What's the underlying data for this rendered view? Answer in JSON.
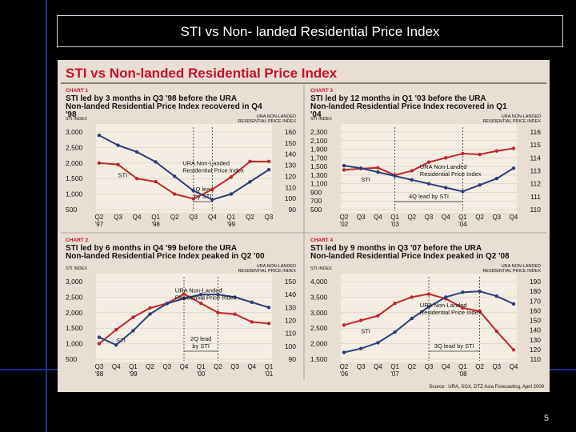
{
  "slide": {
    "title": "STI  vs Non- landed Residential Price Index",
    "page_number": "5"
  },
  "clipping": {
    "headline": "STI vs Non-landed Residential Price Index",
    "source": "Source : URA, SGX, DTZ Asia Forecasting, April 2009"
  },
  "colors": {
    "sti": "#c0272d",
    "ura": "#2c3e7a",
    "headline": "#c8102e",
    "paper": "#e8ded3",
    "slide_bg": "#000000",
    "frame_line": "#1f2f8a"
  },
  "chart_data": [
    {
      "type": "line",
      "tag": "CHART 1",
      "title": "STI led by 3 months in Q3 '98 before the URA Non-landed Residential Price Index recovered in Q4 '98",
      "y_left_label": "STI INDEX",
      "y_right_label": "URA NON-LANDED RESIDENTIAL PRICE INDEX",
      "y_left_ticks": [
        "3,000",
        "2,500",
        "2,000",
        "1,500",
        "1,000",
        "500"
      ],
      "y_right_ticks": [
        "160",
        "150",
        "140",
        "130",
        "120",
        "110",
        "100",
        "90"
      ],
      "ylim_left": [
        500,
        3000
      ],
      "ylim_right": [
        90,
        160
      ],
      "x_labels": [
        [
          "Q2",
          "'97"
        ],
        [
          "Q3",
          ""
        ],
        [
          "Q4",
          ""
        ],
        [
          "Q1",
          "'98"
        ],
        [
          "Q2",
          ""
        ],
        [
          "Q3",
          ""
        ],
        [
          "Q4",
          ""
        ],
        [
          "Q1",
          "'99"
        ],
        [
          "Q2",
          ""
        ],
        [
          "Q3",
          ""
        ]
      ],
      "series": [
        {
          "name": "STI",
          "axis": "left",
          "values": [
            2000,
            1950,
            1500,
            1400,
            1000,
            850,
            1150,
            1550,
            2050,
            2050
          ]
        },
        {
          "name": "URA Non-Landed Residential Price Index",
          "axis": "right",
          "values": [
            157,
            148,
            142,
            133,
            120,
            107,
            99,
            104,
            115,
            126
          ]
        }
      ],
      "annotation": "1Q lead by STI",
      "lead_markers": [
        5,
        6
      ]
    },
    {
      "type": "line",
      "tag": "CHART 3",
      "title": "STI led by 12 months in Q1 '03 before the URA Non-landed Residential Price Index recovered in Q1 '04",
      "y_left_label": "STI INDEX",
      "y_right_label": "URA NON-LANDED RESIDENTIAL PRICE INDEX",
      "y_left_ticks": [
        "2,300",
        "2,100",
        "1,900",
        "1,700",
        "1,500",
        "1,300",
        "1,100",
        "900",
        "700",
        "500"
      ],
      "y_right_ticks": [
        "116",
        "115",
        "114",
        "113",
        "112",
        "111",
        "110"
      ],
      "ylim_left": [
        500,
        2300
      ],
      "ylim_right": [
        110,
        116
      ],
      "x_labels": [
        [
          "Q2",
          "'02"
        ],
        [
          "Q3",
          ""
        ],
        [
          "Q4",
          ""
        ],
        [
          "Q1",
          "'03"
        ],
        [
          "Q2",
          ""
        ],
        [
          "Q3",
          ""
        ],
        [
          "Q4",
          ""
        ],
        [
          "Q1",
          "'04"
        ],
        [
          "Q2",
          ""
        ],
        [
          "Q3",
          ""
        ],
        [
          "Q4",
          ""
        ]
      ],
      "series": [
        {
          "name": "STI",
          "axis": "left",
          "values": [
            1420,
            1450,
            1470,
            1300,
            1400,
            1600,
            1700,
            1800,
            1780,
            1860,
            1920
          ]
        },
        {
          "name": "URA Non-Landed Residential Price Index",
          "axis": "right",
          "values": [
            113.4,
            113.2,
            112.9,
            112.6,
            112.3,
            112.0,
            111.7,
            111.4,
            111.9,
            112.4,
            113.2
          ]
        }
      ],
      "annotation": "4Q lead by STI",
      "lead_markers": [
        3,
        7
      ]
    },
    {
      "type": "line",
      "tag": "CHART 2",
      "title": "STI led by 6 months in Q4 '99 before the URA Non-landed Residential Price Index peaked in Q2 '00",
      "y_left_label": "STI INDEX",
      "y_right_label": "URA NON-LANDED RESIDENTIAL PRICE INDEX",
      "y_left_ticks": [
        "3,000",
        "2,500",
        "2,000",
        "1,500",
        "1,000",
        "500"
      ],
      "y_right_ticks": [
        "150",
        "140",
        "130",
        "120",
        "110",
        "100",
        "90"
      ],
      "ylim_left": [
        500,
        3000
      ],
      "ylim_right": [
        90,
        150
      ],
      "x_labels": [
        [
          "Q3",
          "'98"
        ],
        [
          "Q4",
          ""
        ],
        [
          "Q1",
          "'99"
        ],
        [
          "Q2",
          ""
        ],
        [
          "Q3",
          ""
        ],
        [
          "Q4",
          ""
        ],
        [
          "Q1",
          "'00"
        ],
        [
          "Q2",
          ""
        ],
        [
          "Q3",
          ""
        ],
        [
          "Q4",
          ""
        ],
        [
          "Q1",
          "'01"
        ]
      ],
      "series": [
        {
          "name": "STI",
          "axis": "left",
          "values": [
            1000,
            1450,
            1850,
            2150,
            2300,
            2600,
            2300,
            2000,
            1950,
            1700,
            1650
          ]
        },
        {
          "name": "URA Non-Landed Residential Price Index",
          "axis": "right",
          "values": [
            107,
            101,
            112,
            125,
            133,
            137,
            140,
            140,
            138,
            134,
            130
          ]
        }
      ],
      "annotation": "2Q lead by STI",
      "lead_markers": [
        5,
        7
      ]
    },
    {
      "type": "line",
      "tag": "CHART 4",
      "title": "STI led by 9 months in Q3 '07 before the URA Non-landed Residential Price Index peaked in Q2 '08",
      "y_left_label": "STI INDEX",
      "y_right_label": "URA NON-LANDED RESIDENTIAL PRICE INDEX",
      "y_left_ticks": [
        "4,000",
        "3,500",
        "3,000",
        "2,500",
        "2,000",
        "1,500"
      ],
      "y_right_ticks": [
        "190",
        "180",
        "170",
        "160",
        "150",
        "140",
        "130",
        "120",
        "110"
      ],
      "ylim_left": [
        1500,
        4000
      ],
      "ylim_right": [
        110,
        190
      ],
      "x_labels": [
        [
          "Q2",
          "'06"
        ],
        [
          "Q3",
          ""
        ],
        [
          "Q4",
          ""
        ],
        [
          "Q1",
          "'07"
        ],
        [
          "Q2",
          ""
        ],
        [
          "Q3",
          ""
        ],
        [
          "Q4",
          ""
        ],
        [
          "Q1",
          "'08"
        ],
        [
          "Q2",
          ""
        ],
        [
          "Q3",
          ""
        ],
        [
          "Q4",
          ""
        ]
      ],
      "series": [
        {
          "name": "STI",
          "axis": "left",
          "values": [
            2600,
            2750,
            2900,
            3300,
            3500,
            3600,
            3450,
            3150,
            3050,
            2400,
            1800
          ]
        },
        {
          "name": "URA Non-Landed Residential Price Index",
          "axis": "right",
          "values": [
            117,
            121,
            127,
            138,
            152,
            164,
            174,
            179,
            180,
            175,
            167
          ]
        }
      ],
      "annotation": "3Q lead by STI",
      "lead_markers": [
        5,
        8
      ]
    }
  ]
}
